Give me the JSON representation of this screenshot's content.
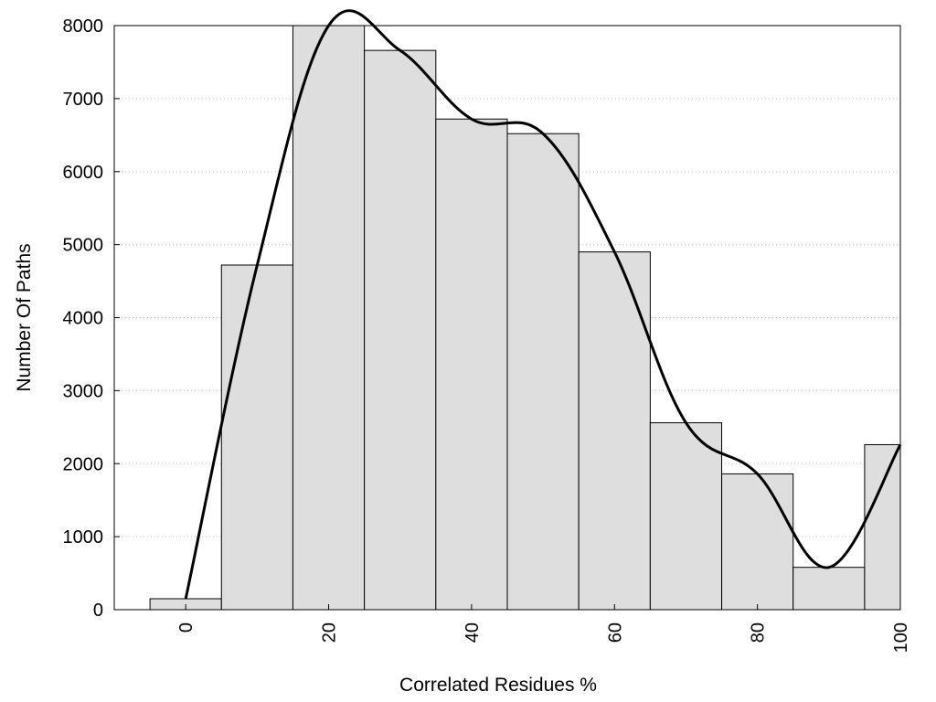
{
  "chart_data": {
    "type": "bar",
    "xlabel": "Correlated Residues %",
    "ylabel": "Number Of Paths",
    "xlim": [
      -10,
      100
    ],
    "ylim": [
      0,
      8000
    ],
    "grid": "horizontal-dotted",
    "bar_width": 10,
    "x": [
      0,
      10,
      20,
      30,
      40,
      50,
      60,
      70,
      80,
      90,
      100
    ],
    "values": [
      150,
      4720,
      8000,
      7660,
      6720,
      6520,
      4900,
      2560,
      1860,
      580,
      2260
    ],
    "x_ticks": [
      0,
      20,
      40,
      60,
      80,
      100
    ],
    "x_tick_labels": [
      "0",
      "20",
      "40",
      "60",
      "80",
      "100"
    ],
    "y_ticks": [
      0,
      1000,
      2000,
      3000,
      4000,
      5000,
      6000,
      7000,
      8000
    ],
    "y_tick_labels": [
      "0",
      "1000",
      "2000",
      "3000",
      "4000",
      "5000",
      "6000",
      "7000",
      "8000"
    ],
    "smooth_curve": {
      "x": [
        0,
        10,
        20,
        30,
        40,
        50,
        60,
        70,
        80,
        90,
        100
      ],
      "y": [
        150,
        4720,
        8000,
        7660,
        6720,
        6520,
        4900,
        2560,
        1860,
        580,
        2260
      ]
    },
    "colors": {
      "bar_fill": "#dedede",
      "bar_stroke": "#000000",
      "curve": "#000000",
      "grid": "#bdbdbd"
    }
  }
}
